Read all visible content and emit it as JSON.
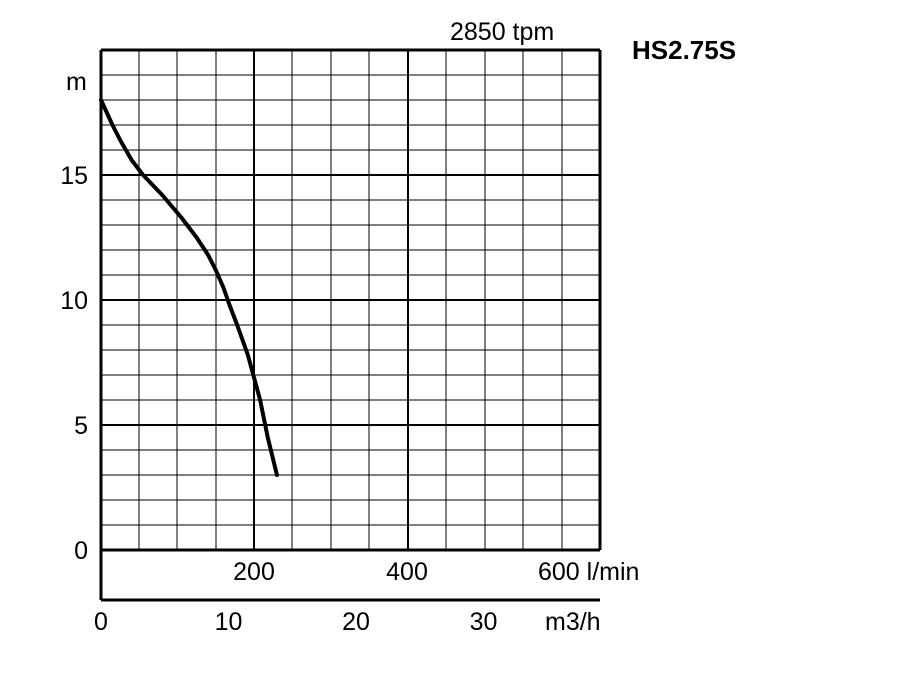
{
  "chart_data": {
    "type": "line",
    "title": "HS2.75S",
    "subtitle": "2850 tpm",
    "ylabel": "m",
    "x_primary_unit": "l/min",
    "x_secondary_unit": "m3/h",
    "xlim_lpm": [
      0,
      650
    ],
    "ylim": [
      0,
      20
    ],
    "y_ticks": [
      "0",
      "5",
      "10",
      "15"
    ],
    "x_ticks_lpm": [
      "200",
      "400",
      "600 l/min"
    ],
    "x_ticks_m3h": [
      "0",
      "10",
      "20",
      "30",
      "m3/h"
    ],
    "grid": true,
    "series": [
      {
        "x_lpm": [
          0,
          15,
          25,
          40,
          55,
          80,
          105,
          125,
          140,
          150,
          160,
          168,
          178,
          192,
          208,
          218,
          230
        ],
        "y_m": [
          18.0,
          17.0,
          16.4,
          15.6,
          15.0,
          14.2,
          13.3,
          12.5,
          11.8,
          11.2,
          10.5,
          9.8,
          9.0,
          7.8,
          6.0,
          4.5,
          3.0
        ]
      }
    ]
  }
}
